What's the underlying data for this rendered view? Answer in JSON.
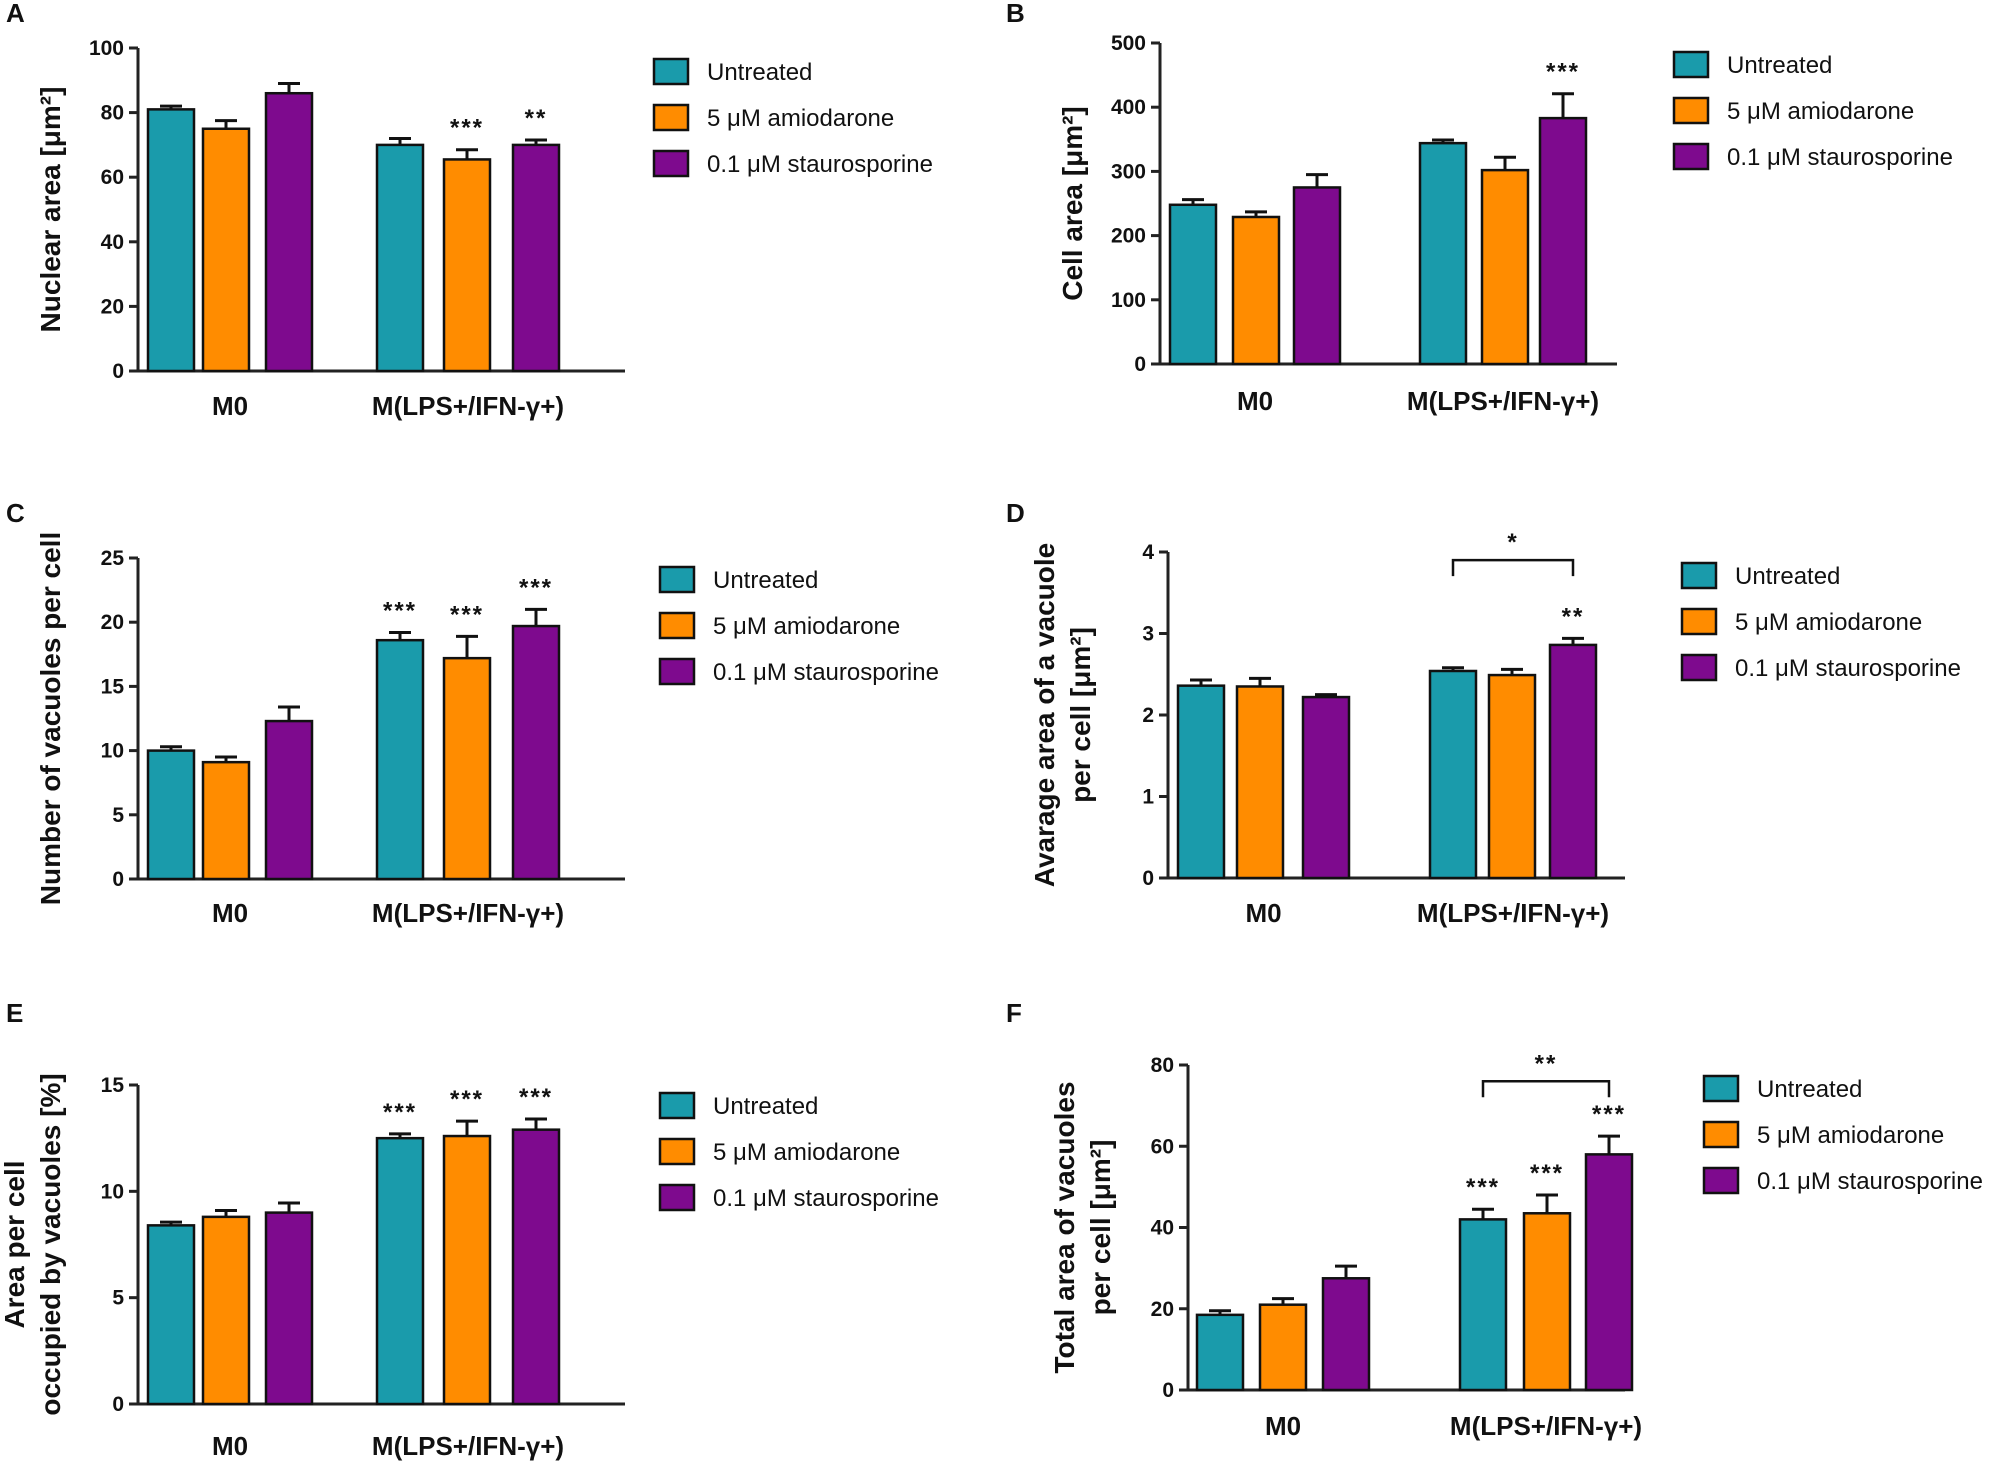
{
  "colors": {
    "Untreated": "#1a9bab",
    "5 μM amiodarone": "#ff8c00",
    "0.1 μM staurosporine": "#7e0a8e",
    "axis": "#222222",
    "error": "#111111"
  },
  "chart_data": [
    {
      "panel": "A",
      "type": "bar",
      "ylabel": "Nuclear area [μm²]",
      "ylim": [
        0,
        100
      ],
      "yticks": [
        "0",
        "20",
        "40",
        "60",
        "80",
        "100"
      ],
      "categories": [
        "M0",
        "M(LPS+/IFN-γ+)"
      ],
      "series": [
        {
          "name": "Untreated",
          "values": [
            81,
            70
          ],
          "errors": [
            1,
            2
          ],
          "sig": [
            "",
            ""
          ]
        },
        {
          "name": "5 μM amiodarone",
          "values": [
            75,
            65.5
          ],
          "errors": [
            2.5,
            3
          ],
          "sig": [
            "",
            "***"
          ]
        },
        {
          "name": "0.1 μM staurosporine",
          "values": [
            86,
            70
          ],
          "errors": [
            3,
            1.5
          ],
          "sig": [
            "",
            "**"
          ]
        }
      ],
      "legend": [
        "Untreated",
        "5 μM amiodarone",
        "0.1 μM staurosporine"
      ],
      "bracket": null
    },
    {
      "panel": "B",
      "type": "bar",
      "ylabel": "Cell area [μm²]",
      "ylim": [
        0,
        500
      ],
      "yticks": [
        "0",
        "100",
        "200",
        "300",
        "400",
        "500"
      ],
      "categories": [
        "M0",
        "M(LPS+/IFN-γ+)"
      ],
      "series": [
        {
          "name": "Untreated",
          "values": [
            248,
            344
          ],
          "errors": [
            8,
            5
          ],
          "sig": [
            "",
            ""
          ]
        },
        {
          "name": "5 μM amiodarone",
          "values": [
            229,
            302
          ],
          "errors": [
            8,
            20
          ],
          "sig": [
            "",
            ""
          ]
        },
        {
          "name": "0.1 μM staurosporine",
          "values": [
            275,
            383
          ],
          "errors": [
            20,
            38
          ],
          "sig": [
            "",
            "***"
          ]
        }
      ],
      "legend": [
        "Untreated",
        "5 μM amiodarone",
        "0.1 μM staurosporine"
      ],
      "bracket": null
    },
    {
      "panel": "C",
      "type": "bar",
      "ylabel": "Number of vacuoles per cell",
      "ylim": [
        0,
        25
      ],
      "yticks": [
        "0",
        "5",
        "10",
        "15",
        "20",
        "25"
      ],
      "categories": [
        "M0",
        "M(LPS+/IFN-γ+)"
      ],
      "series": [
        {
          "name": "Untreated",
          "values": [
            10,
            18.6
          ],
          "errors": [
            0.3,
            0.6
          ],
          "sig": [
            "",
            "***"
          ]
        },
        {
          "name": "5 μM amiodarone",
          "values": [
            9.1,
            17.2
          ],
          "errors": [
            0.4,
            1.7
          ],
          "sig": [
            "",
            "***"
          ]
        },
        {
          "name": "0.1 μM staurosporine",
          "values": [
            12.3,
            19.7
          ],
          "errors": [
            1.1,
            1.3
          ],
          "sig": [
            "",
            "***"
          ]
        }
      ],
      "legend": [
        "Untreated",
        "5 μM amiodarone",
        "0.1 μM staurosporine"
      ],
      "bracket": null
    },
    {
      "panel": "D",
      "type": "bar",
      "ylabel": "Avarage area of a vacuole|per cell [μm²]",
      "ylim": [
        0,
        4
      ],
      "yticks": [
        "0",
        "1",
        "2",
        "3",
        "4"
      ],
      "categories": [
        "M0",
        "M(LPS+/IFN-γ+)"
      ],
      "series": [
        {
          "name": "Untreated",
          "values": [
            2.36,
            2.54
          ],
          "errors": [
            0.07,
            0.04
          ],
          "sig": [
            "",
            ""
          ]
        },
        {
          "name": "5 μM amiodarone",
          "values": [
            2.35,
            2.49
          ],
          "errors": [
            0.1,
            0.07
          ],
          "sig": [
            "",
            ""
          ]
        },
        {
          "name": "0.1 μM staurosporine",
          "values": [
            2.22,
            2.86
          ],
          "errors": [
            0.03,
            0.08
          ],
          "sig": [
            "",
            "**"
          ]
        }
      ],
      "legend": [
        "Untreated",
        "5 μM amiodarone",
        "0.1 μM staurosporine"
      ],
      "bracket": {
        "group": 1,
        "from": 0,
        "to": 2,
        "value": 3.9,
        "label": "*"
      }
    },
    {
      "panel": "E",
      "type": "bar",
      "ylabel": "Area per cell|occupied by vacuoles [%]",
      "ylim": [
        0,
        15
      ],
      "yticks": [
        "0",
        "5",
        "10",
        "15"
      ],
      "categories": [
        "M0",
        "M(LPS+/IFN-γ+)"
      ],
      "series": [
        {
          "name": "Untreated",
          "values": [
            8.4,
            12.5
          ],
          "errors": [
            0.15,
            0.2
          ],
          "sig": [
            "",
            "***"
          ]
        },
        {
          "name": "5 μM amiodarone",
          "values": [
            8.8,
            12.6
          ],
          "errors": [
            0.3,
            0.7
          ],
          "sig": [
            "",
            "***"
          ]
        },
        {
          "name": "0.1 μM staurosporine",
          "values": [
            9.0,
            12.9
          ],
          "errors": [
            0.45,
            0.5
          ],
          "sig": [
            "",
            "***"
          ]
        }
      ],
      "legend": [
        "Untreated",
        "5 μM amiodarone",
        "0.1 μM staurosporine"
      ],
      "bracket": null
    },
    {
      "panel": "F",
      "type": "bar",
      "ylabel": "Total area of vacuoles|per cell [μm²]",
      "ylim": [
        0,
        80
      ],
      "yticks": [
        "0",
        "20",
        "40",
        "60",
        "80"
      ],
      "categories": [
        "M0",
        "M(LPS+/IFN-γ+)"
      ],
      "series": [
        {
          "name": "Untreated",
          "values": [
            18.5,
            42
          ],
          "errors": [
            1,
            2.5
          ],
          "sig": [
            "",
            "***"
          ]
        },
        {
          "name": "5 μM amiodarone",
          "values": [
            21,
            43.5
          ],
          "errors": [
            1.5,
            4.5
          ],
          "sig": [
            "",
            "***"
          ]
        },
        {
          "name": "0.1 μM staurosporine",
          "values": [
            27.5,
            58
          ],
          "errors": [
            3,
            4.5
          ],
          "sig": [
            "",
            "***"
          ]
        }
      ],
      "legend": [
        "Untreated",
        "5 μM amiodarone",
        "0.1 μM staurosporine"
      ],
      "bracket": {
        "group": 1,
        "from": 0,
        "to": 2,
        "value": 76,
        "label": "**"
      }
    }
  ]
}
